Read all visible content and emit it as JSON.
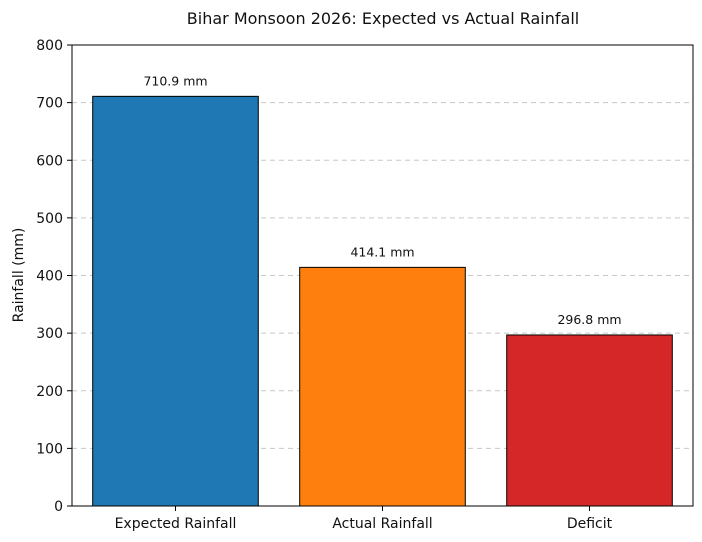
{
  "chart_data": {
    "type": "bar",
    "title": "Bihar Monsoon 2026: Expected vs Actual Rainfall",
    "xlabel": "",
    "ylabel": "Rainfall (mm)",
    "ylim": [
      0,
      800
    ],
    "yticks": [
      0,
      100,
      200,
      300,
      400,
      500,
      600,
      700,
      800
    ],
    "categories": [
      "Expected Rainfall",
      "Actual Rainfall",
      "Deficit"
    ],
    "values": [
      710.9,
      414.1,
      296.8
    ],
    "data_labels": [
      "710.9 mm",
      "414.1 mm",
      "296.8 mm"
    ],
    "colors": [
      "#1f77b4",
      "#ff7f0e",
      "#d62728"
    ],
    "grid": "y-dashed",
    "legend": "none"
  }
}
